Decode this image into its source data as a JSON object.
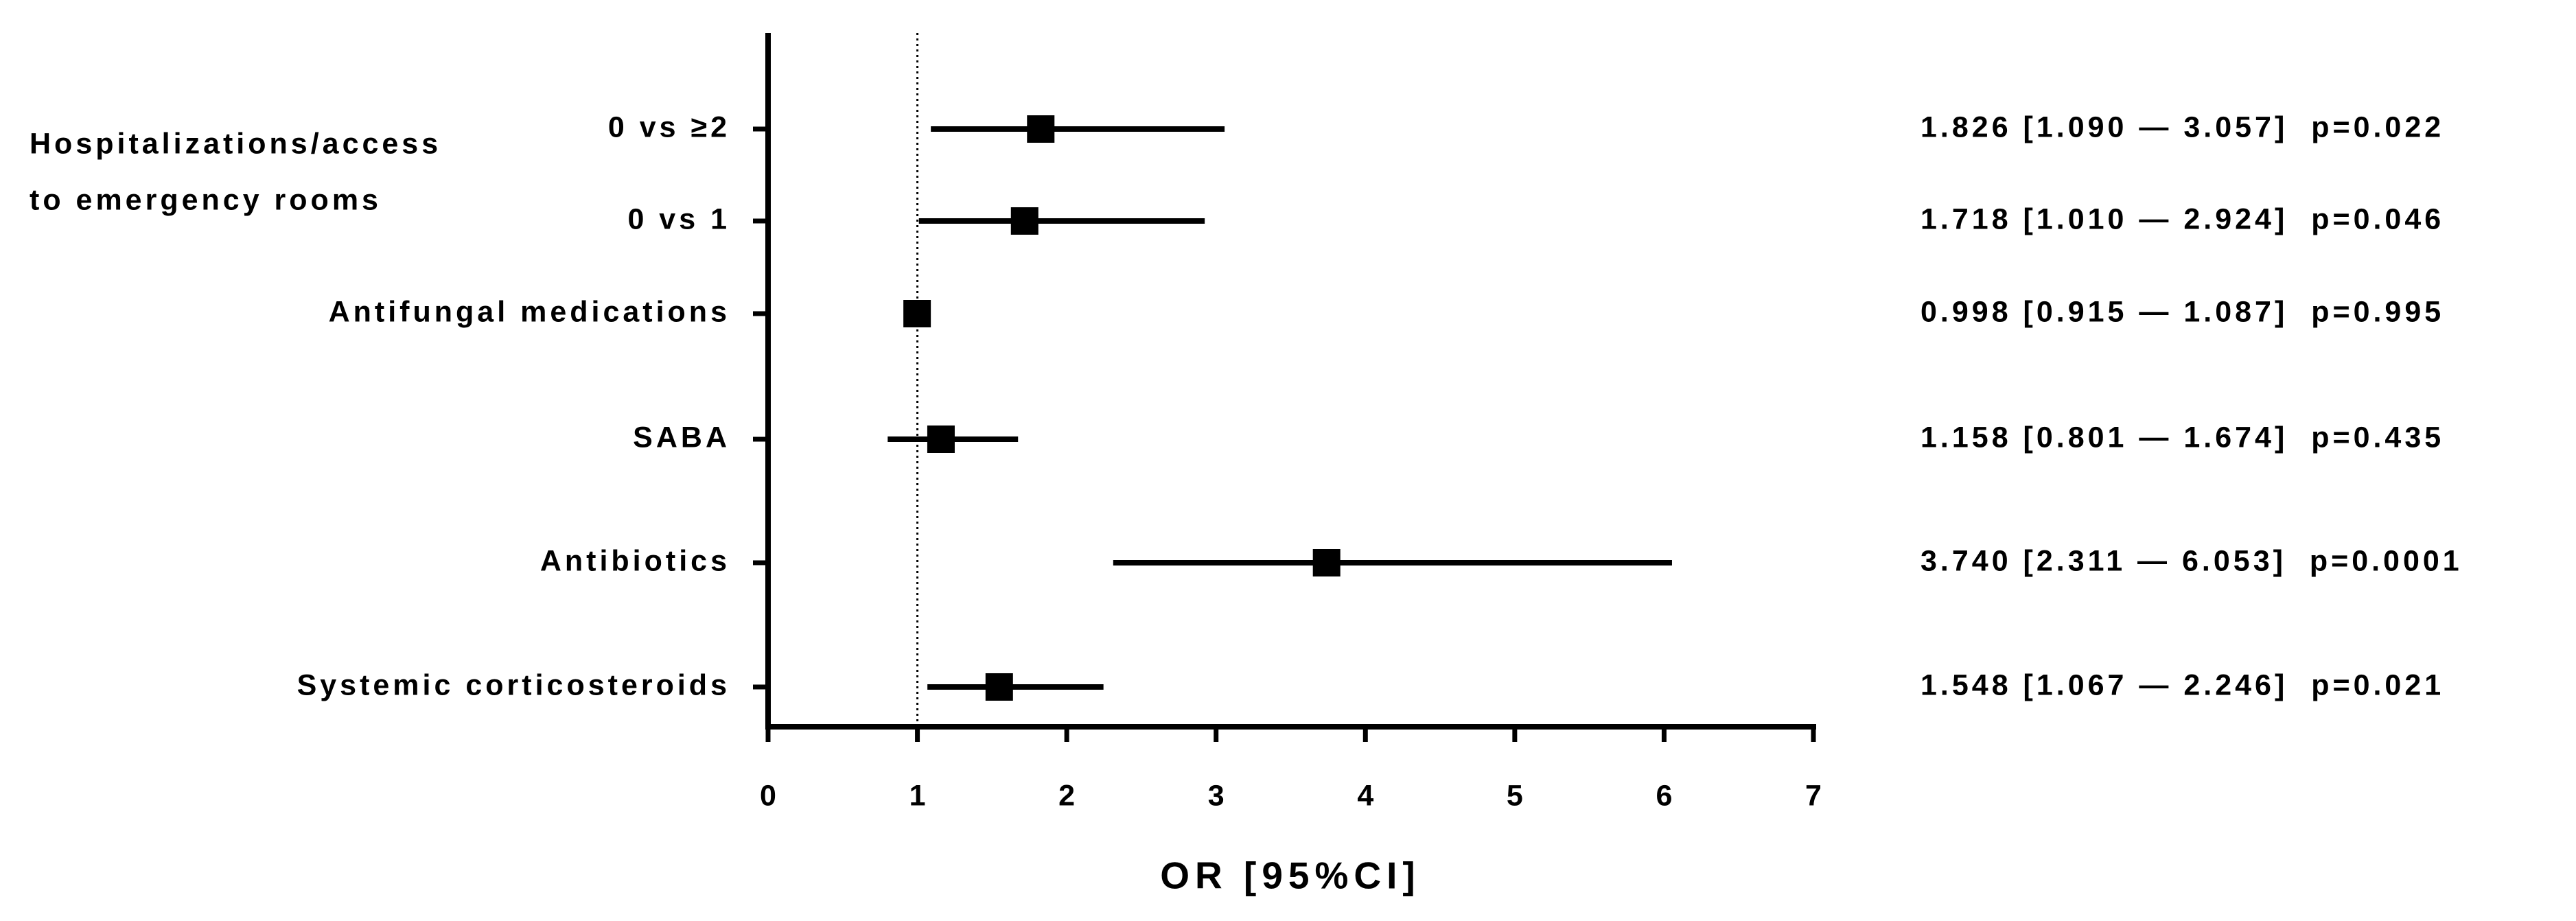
{
  "chart_data": {
    "type": "forest",
    "group_label": [
      "Hospitalizations/access",
      "to emergency rooms"
    ],
    "categories": [
      "0 vs ≥2",
      "0 vs 1",
      "Antifungal medications",
      "SABA",
      "Antibiotics",
      "Systemic corticosteroids"
    ],
    "values": [
      1.826,
      1.718,
      0.998,
      1.158,
      3.74,
      1.548
    ],
    "lower": [
      1.09,
      1.01,
      0.915,
      0.801,
      2.311,
      1.067
    ],
    "upper": [
      3.057,
      2.924,
      1.087,
      1.674,
      6.053,
      2.246
    ],
    "annotations": [
      "1.826 [1.090 — 3.057]  p=0.022",
      "1.718 [1.010 — 2.924]  p=0.046",
      "0.998 [0.915 — 1.087]  p=0.995",
      "1.158 [0.801 — 1.674]  p=0.435",
      "3.740 [2.311 — 6.053]  p=0.0001",
      "1.548 [1.067 — 2.246]  p=0.021"
    ],
    "color": "#000000",
    "reference_line": 1,
    "xlabel": "OR [95%CI]",
    "xlim": [
      0,
      7
    ],
    "xticks": [
      0,
      1,
      2,
      3,
      4,
      5,
      6,
      7
    ]
  }
}
